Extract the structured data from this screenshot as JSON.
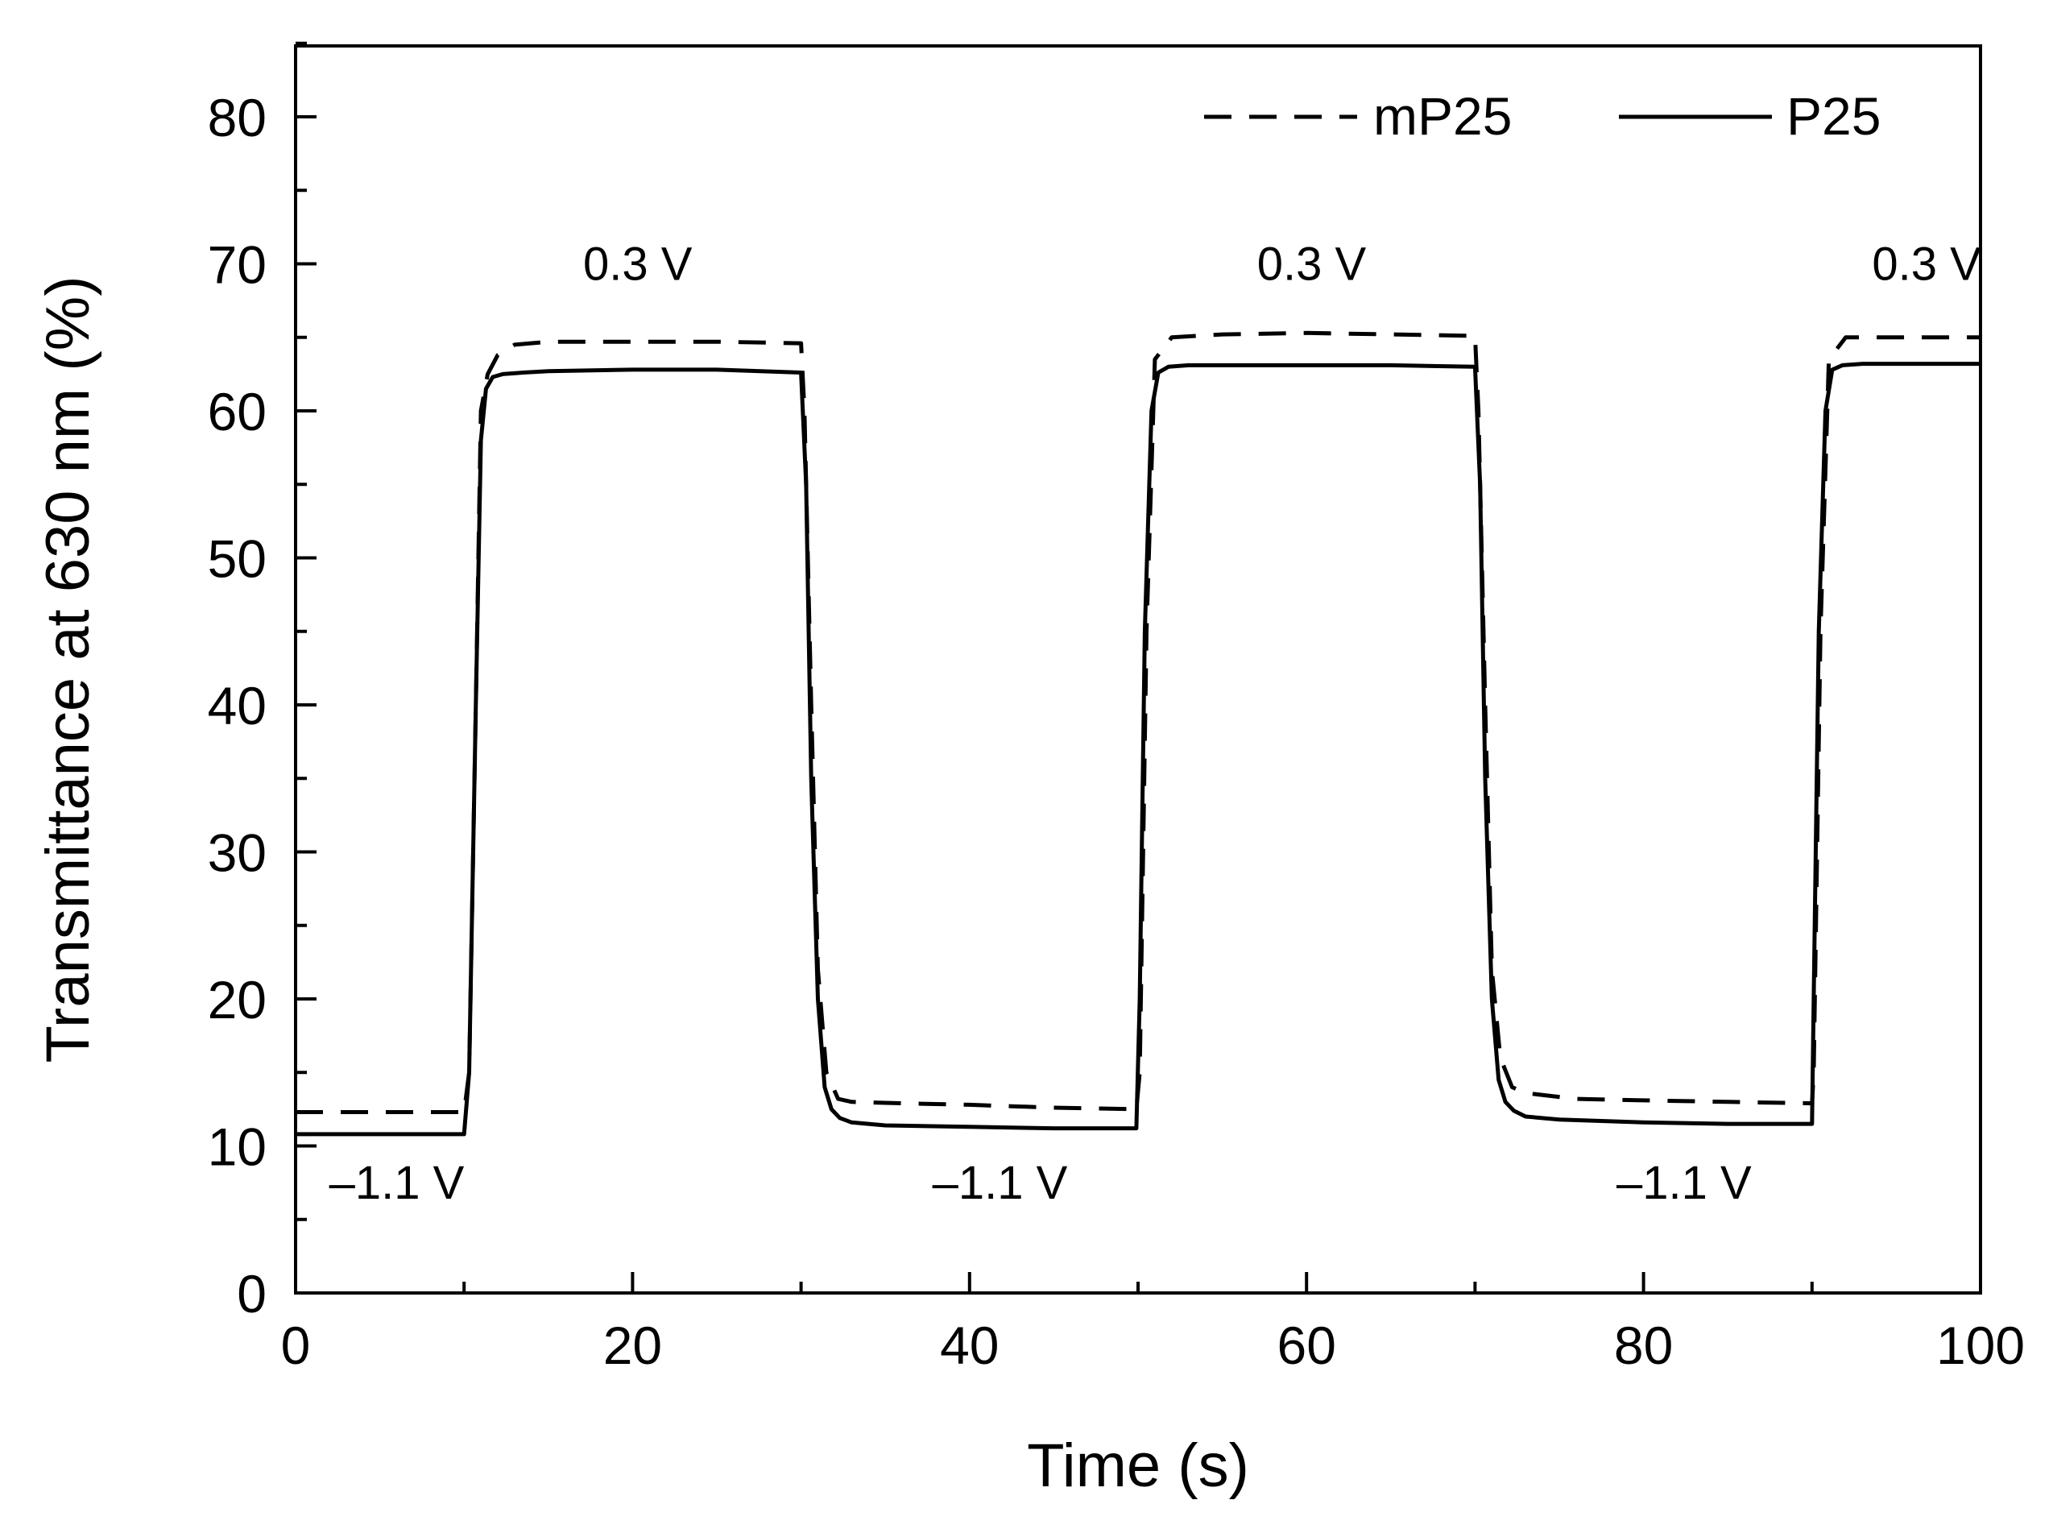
{
  "chart_data": {
    "type": "line",
    "title": "",
    "xlabel": "Time (s)",
    "ylabel": "Transmittance at 630 nm (%)",
    "xlim": [
      0,
      100
    ],
    "ylim": [
      0,
      85
    ],
    "xticks": [
      0,
      20,
      40,
      60,
      80,
      100
    ],
    "xtick_labels": [
      "0",
      "20",
      "40",
      "60",
      "80",
      "100"
    ],
    "yticks": [
      0,
      10,
      20,
      30,
      40,
      50,
      60,
      70,
      80
    ],
    "ytick_labels": [
      "0",
      "10",
      "20",
      "30",
      "40",
      "50",
      "60",
      "70",
      "80"
    ],
    "grid": false,
    "legend_position": "top-right",
    "series": [
      {
        "name": "mP25",
        "style": "dashed",
        "color": "#000000",
        "x": [
          0,
          10,
          10.3,
          10.7,
          11.0,
          11.4,
          12.0,
          13.0,
          15,
          20,
          25,
          30,
          30.2,
          30.6,
          31.0,
          31.5,
          32.2,
          33,
          36,
          40,
          45,
          49.9,
          50.1,
          50.5,
          51,
          52,
          55,
          60,
          65,
          70,
          70.2,
          70.6,
          71.0,
          71.5,
          72.2,
          73,
          76,
          80,
          85,
          90,
          90.1,
          90.5,
          91,
          92,
          95,
          100
        ],
        "y": [
          12.3,
          12.3,
          15,
          40,
          60,
          62.5,
          63.8,
          64.5,
          64.7,
          64.7,
          64.7,
          64.6,
          60,
          40,
          22,
          15,
          13.2,
          13.0,
          12.9,
          12.8,
          12.6,
          12.5,
          15,
          45,
          63.5,
          65.0,
          65.2,
          65.3,
          65.2,
          65.1,
          60,
          40,
          22,
          16,
          14.0,
          13.6,
          13.2,
          13.1,
          13.0,
          12.9,
          15,
          45,
          63.5,
          65.0,
          65.0,
          65.0
        ]
      },
      {
        "name": "P25",
        "style": "solid",
        "color": "#000000",
        "x": [
          0,
          10,
          10.3,
          10.7,
          11.0,
          11.3,
          11.7,
          12.3,
          13.5,
          15,
          20,
          25,
          30,
          30.3,
          30.6,
          31.0,
          31.4,
          31.8,
          32.3,
          33,
          35,
          40,
          45,
          49.9,
          50.1,
          50.4,
          50.8,
          51.2,
          51.8,
          53,
          60,
          65,
          70,
          70.3,
          70.6,
          71.0,
          71.4,
          71.8,
          72.3,
          73,
          75,
          80,
          85,
          90,
          90.1,
          90.4,
          90.8,
          91.2,
          91.8,
          93,
          100
        ],
        "y": [
          10.8,
          10.8,
          15,
          40,
          58,
          61.5,
          62.3,
          62.5,
          62.6,
          62.7,
          62.8,
          62.8,
          62.6,
          55,
          35,
          20,
          14,
          12.5,
          11.9,
          11.6,
          11.4,
          11.3,
          11.2,
          11.2,
          20,
          45,
          60,
          62.6,
          63.0,
          63.1,
          63.1,
          63.1,
          63.0,
          55,
          35,
          20,
          14.5,
          13,
          12.4,
          12.0,
          11.8,
          11.6,
          11.5,
          11.5,
          20,
          45,
          60,
          62.8,
          63.1,
          63.2,
          63.2
        ]
      }
    ],
    "annotations": [
      {
        "text": "0.3 V",
        "x": 20.3,
        "y": 68.9
      },
      {
        "text": "0.3 V",
        "x": 60.3,
        "y": 68.9
      },
      {
        "text": "0.3 V",
        "x": 96.8,
        "y": 68.9
      },
      {
        "text": "–1.1 V",
        "x": 6.0,
        "y": 6.4
      },
      {
        "text": "–1.1 V",
        "x": 41.8,
        "y": 6.4
      },
      {
        "text": "–1.1 V",
        "x": 82.4,
        "y": 6.4
      }
    ]
  }
}
